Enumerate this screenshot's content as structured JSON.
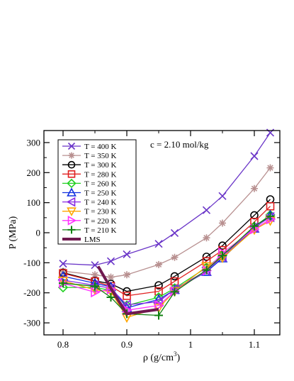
{
  "chart_data": {
    "type": "line",
    "title": "",
    "annotation": "c = 2.10 mol/kg",
    "xlabel": "ρ (g/cm",
    "xlabel_superscript": "3",
    "xlabel_suffix": ")",
    "ylabel": "P (MPa)",
    "xlim": [
      0.77,
      1.14
    ],
    "ylim": [
      -340,
      340
    ],
    "xticks": [
      0.8,
      0.9,
      1.0,
      1.1
    ],
    "xtick_labels": [
      "0.8",
      "0.9",
      "1",
      "1.1"
    ],
    "yticks": [
      -300,
      -200,
      -100,
      0,
      100,
      200,
      300
    ],
    "ytick_labels": [
      "-300",
      "-200",
      "-100",
      "0",
      "100",
      "200",
      "300"
    ],
    "grid": false,
    "legend_position": "top-left",
    "series": [
      {
        "name": "T = 400 K",
        "color": "#6a35c8",
        "marker": "x",
        "x": [
          0.8,
          0.85,
          0.875,
          0.9,
          0.95,
          0.975,
          1.025,
          1.05,
          1.1,
          1.125
        ],
        "y": [
          -103,
          -108,
          -95,
          -72,
          -37,
          -1,
          75,
          122,
          255,
          333
        ]
      },
      {
        "name": "T = 350 K",
        "color": "#b89090",
        "marker": "star",
        "x": [
          0.8,
          0.85,
          0.875,
          0.9,
          0.95,
          0.975,
          1.025,
          1.05,
          1.1,
          1.125
        ],
        "y": [
          -128,
          -140,
          -148,
          -140,
          -106,
          -82,
          -17,
          32,
          147,
          216
        ]
      },
      {
        "name": "T = 300 K",
        "color": "#000000",
        "marker": "circle",
        "x": [
          0.8,
          0.85,
          0.875,
          0.9,
          0.95,
          0.975,
          1.025,
          1.05,
          1.1,
          1.125
        ],
        "y": [
          -133,
          -160,
          -170,
          -195,
          -175,
          -145,
          -80,
          -43,
          58,
          111
        ]
      },
      {
        "name": "T = 280 K",
        "color": "#e02020",
        "marker": "square",
        "x": [
          0.8,
          0.85,
          0.875,
          0.9,
          0.95,
          0.975,
          1.025,
          1.05,
          1.1,
          1.125
        ],
        "y": [
          -135,
          -162,
          -178,
          -210,
          -195,
          -162,
          -95,
          -58,
          36,
          88
        ]
      },
      {
        "name": "T = 260 K",
        "color": "#20d020",
        "marker": "diamond",
        "x": [
          0.8,
          0.85,
          0.875,
          0.9,
          0.95,
          0.975,
          1.025,
          1.05,
          1.1,
          1.125
        ],
        "y": [
          -182,
          -182,
          -192,
          -242,
          -215,
          -185,
          -116,
          -75,
          20,
          59
        ]
      },
      {
        "name": "T = 250 K",
        "color": "#1030e0",
        "marker": "triangle-up",
        "x": [
          0.8,
          0.85,
          0.875,
          0.9,
          0.95,
          0.975,
          1.025,
          1.05,
          1.1,
          1.125
        ],
        "y": [
          -145,
          -168,
          -180,
          -250,
          -222,
          -190,
          -130,
          -85,
          14,
          58
        ]
      },
      {
        "name": "T = 240 K",
        "color": "#8a2be2",
        "marker": "triangle-left",
        "x": [
          0.8,
          0.85,
          0.875,
          0.9,
          0.95,
          0.975,
          1.025,
          1.05,
          1.1,
          1.125
        ],
        "y": [
          -158,
          -175,
          -185,
          -240,
          -230,
          -188,
          -126,
          -80,
          18,
          52
        ]
      },
      {
        "name": "T = 230 K",
        "color": "#ffa500",
        "marker": "triangle-down",
        "x": [
          0.8,
          0.85,
          0.875,
          0.9,
          0.95,
          0.975,
          1.025,
          1.05,
          1.1,
          1.125
        ],
        "y": [
          -160,
          -190,
          -196,
          -282,
          -250,
          -195,
          -112,
          -83,
          10,
          40
        ]
      },
      {
        "name": "T = 220 K",
        "color": "#ff30ff",
        "marker": "triangle-right",
        "x": [
          0.8,
          0.85,
          0.875,
          0.9,
          0.95,
          0.975,
          1.025,
          1.05,
          1.1,
          1.125
        ],
        "y": [
          -168,
          -198,
          -188,
          -258,
          -242,
          -195,
          -126,
          -67,
          12,
          45
        ]
      },
      {
        "name": "T = 210 K",
        "color": "#108010",
        "marker": "plus",
        "x": [
          0.8,
          0.85,
          0.875,
          0.9,
          0.95,
          0.975,
          1.025,
          1.05,
          1.1,
          1.125
        ],
        "y": [
          -168,
          -178,
          -215,
          -270,
          -275,
          -197,
          -124,
          -76,
          22,
          55
        ]
      },
      {
        "name": "LMS",
        "color": "#701a50",
        "marker": "none",
        "linewidth": 4,
        "x": [
          0.855,
          0.875,
          0.9,
          0.95
        ],
        "y": [
          -112,
          -185,
          -270,
          -255
        ]
      }
    ]
  }
}
